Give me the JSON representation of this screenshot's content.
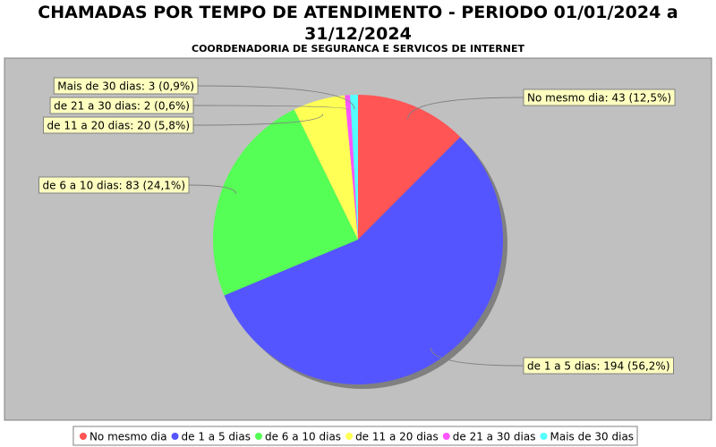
{
  "chart_data": {
    "type": "pie",
    "title": "CHAMADAS POR TEMPO DE ATENDIMENTO - PERIODO 01/01/2024 a 31/12/2024",
    "subtitle": "COORDENADORIA DE SEGURANCA E SERVICOS DE INTERNET",
    "categories": [
      "No mesmo dia",
      "de 1 a 5 dias",
      "de 6 a 10 dias",
      "de 11 a 20 dias",
      "de 21 a 30 dias",
      "Mais de 30 dias"
    ],
    "values": [
      43,
      194,
      83,
      20,
      2,
      3
    ],
    "value_labels": [
      "No mesmo dia: 43 (12,5%)",
      "de 1 a 5 dias: 194 (56,2%)",
      "de 6 a 10 dias: 83 (24,1%)",
      "de 11 a 20 dias: 20 (5,8%)",
      "de 21 a 30 dias: 2 (0,6%)",
      "Mais de 30 dias: 3 (0,9%)"
    ],
    "colors": [
      "#ff5555",
      "#5555ff",
      "#55ff55",
      "#ffff55",
      "#ff55ff",
      "#55ffff"
    ],
    "legend": "bottom"
  }
}
